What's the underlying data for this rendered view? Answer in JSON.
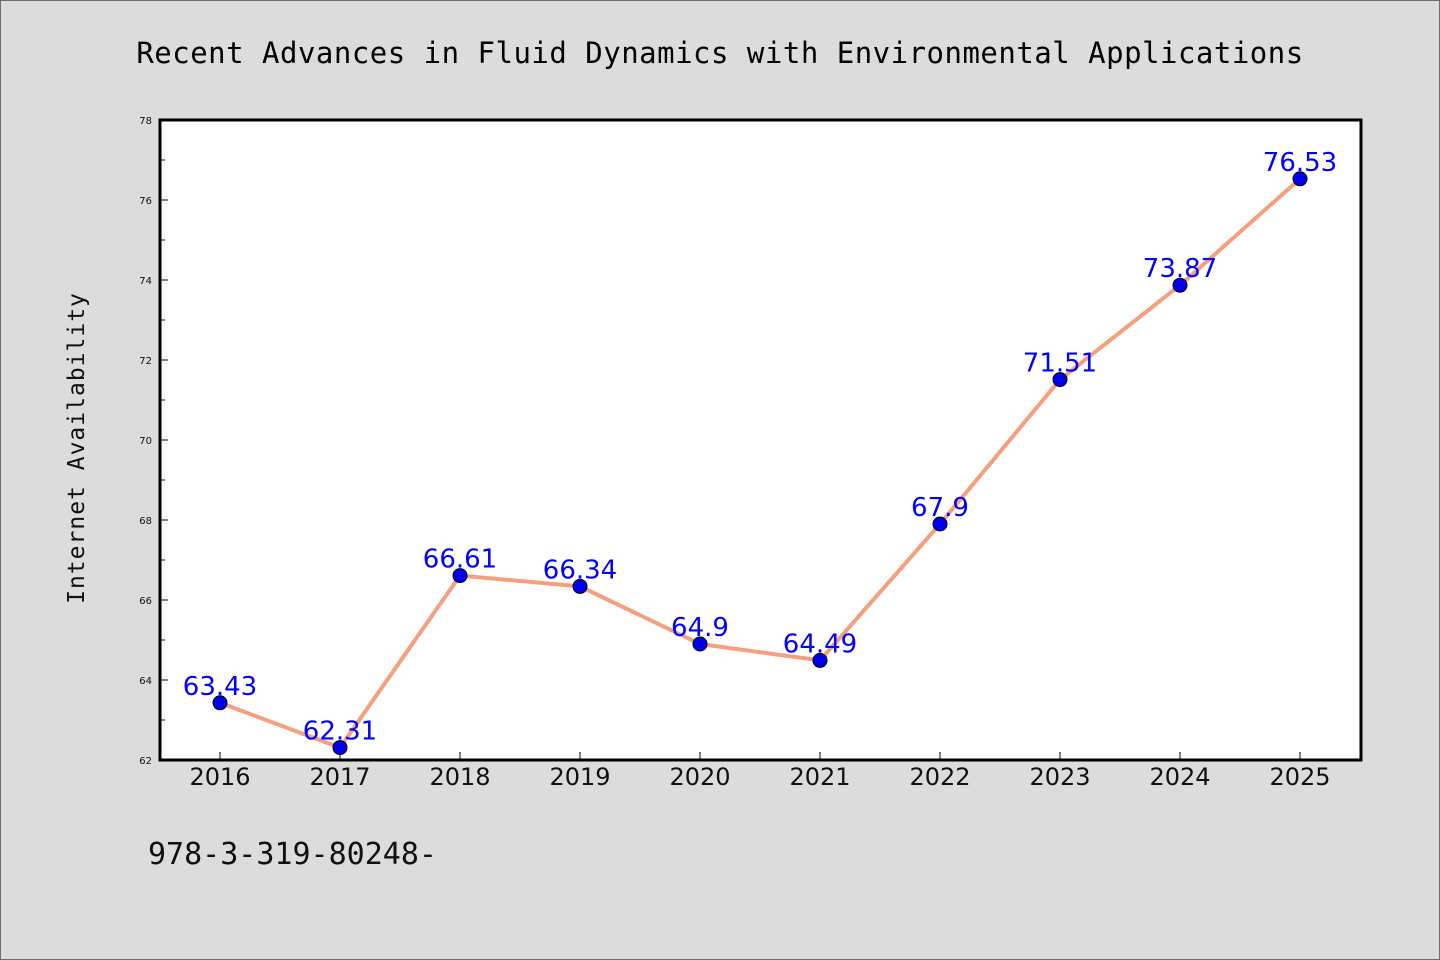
{
  "chart_data": {
    "type": "line",
    "title": "Recent Advances in Fluid Dynamics with Environmental Applications",
    "ylabel": "Internet Availability",
    "xlabel": "",
    "categories": [
      "2016",
      "2017",
      "2018",
      "2019",
      "2020",
      "2021",
      "2022",
      "2023",
      "2024",
      "2025"
    ],
    "values": [
      63.43,
      62.31,
      66.61,
      66.34,
      64.9,
      64.49,
      67.9,
      71.51,
      73.87,
      76.53
    ],
    "data_labels": [
      "63.43",
      "62.31",
      "66.61",
      "66.34",
      "64.9",
      "64.49",
      "67.9",
      "71.51",
      "73.87",
      "76.53"
    ],
    "ylim": [
      62,
      78
    ],
    "yticks": [
      62,
      64,
      66,
      68,
      70,
      72,
      74,
      76,
      78
    ],
    "grid": false,
    "line_color": "#f4a07e",
    "marker_color": "#0000ee",
    "label_color": "#0000ff"
  },
  "footer": {
    "text": "978-3-319-80248-"
  }
}
